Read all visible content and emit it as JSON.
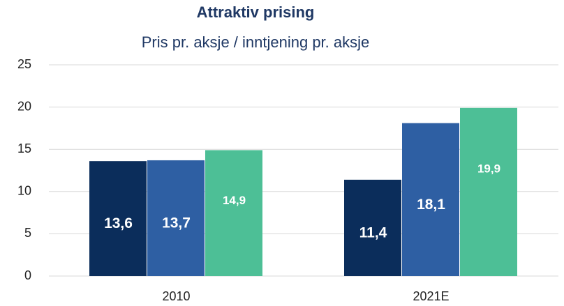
{
  "chart_data": {
    "type": "bar",
    "title": "Attraktiv prising",
    "subtitle": "Pris pr. aksje / inntjening pr. aksje",
    "categories": [
      "2010",
      "2021E"
    ],
    "series": [
      {
        "color": "#0b2d5b",
        "values": [
          13.6,
          11.4
        ],
        "value_labels": [
          "13,6",
          "11,4"
        ]
      },
      {
        "color": "#2e5fa3",
        "values": [
          13.7,
          18.1
        ],
        "value_labels": [
          "13,7",
          "18,1"
        ]
      },
      {
        "color": "#4dbf96",
        "values": [
          14.9,
          19.9
        ],
        "value_labels": [
          "14,9",
          "19,9"
        ]
      }
    ],
    "ylim": [
      0,
      25
    ],
    "yticks": [
      0,
      5,
      10,
      15,
      20,
      25
    ],
    "grid": true
  }
}
